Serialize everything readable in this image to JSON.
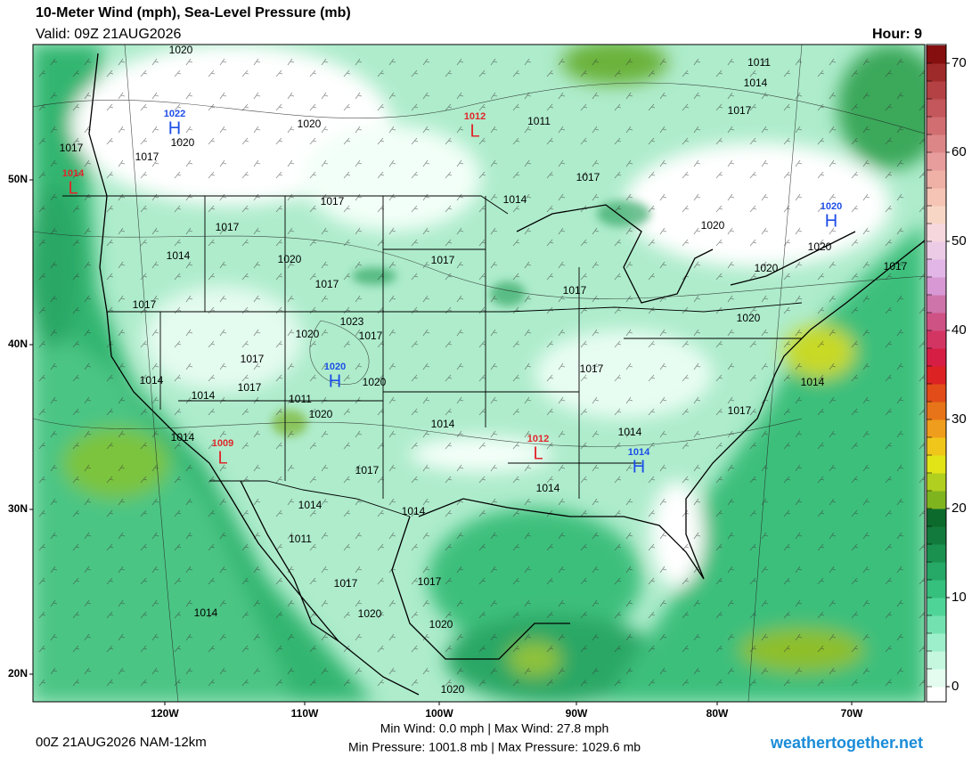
{
  "header": {
    "title": "10-Meter Wind (mph), Sea-Level Pressure (mb)",
    "valid": "Valid: 09Z 21AUG2026",
    "hour": "Hour: 9"
  },
  "map": {
    "lat_labels": [
      "50N",
      "40N",
      "30N",
      "20N"
    ],
    "lon_labels": [
      "120W",
      "110W",
      "100W",
      "90W",
      "80W",
      "70W"
    ],
    "isobar_labels": [
      1020,
      1020,
      1017,
      1020,
      1011,
      1017,
      1011,
      1014,
      1017,
      1014,
      1017,
      1017,
      1014,
      1020,
      1017,
      1017,
      1017,
      1020,
      1020,
      1020,
      1017,
      1017,
      1023,
      1020,
      1017,
      1020,
      1017,
      1017,
      1014,
      1014,
      1017,
      1020,
      1014,
      1017,
      1011,
      1020,
      1014,
      1014,
      1014,
      1017,
      1014,
      1014,
      1014,
      1011,
      1017,
      1017,
      1020,
      1020,
      1014,
      1020,
      1017
    ],
    "centers": [
      {
        "type": "H",
        "pressure": 1022
      },
      {
        "type": "L",
        "pressure": 1012
      },
      {
        "type": "L",
        "pressure": 1014
      },
      {
        "type": "H",
        "pressure": 1020
      },
      {
        "type": "H",
        "pressure": 1020
      },
      {
        "type": "L",
        "pressure": 1009
      },
      {
        "type": "L",
        "pressure": 1012
      },
      {
        "type": "H",
        "pressure": 1014
      }
    ]
  },
  "colorbar": {
    "range": [
      0,
      72
    ],
    "ticks": [
      0,
      10,
      20,
      30,
      40,
      50,
      60,
      70
    ],
    "colors": [
      "#e4fcef",
      "#c4f7de",
      "#9cefca",
      "#74e2b0",
      "#4fd497",
      "#36c07d",
      "#26a866",
      "#1b9150",
      "#127a3c",
      "#0c6a2c",
      "#80b41f",
      "#b0cf1e",
      "#e2e418",
      "#f0c61b",
      "#ef9d1c",
      "#e77418",
      "#e24c18",
      "#dc2222",
      "#d61e44",
      "#d33563",
      "#cf5284",
      "#cf74aa",
      "#d898d4",
      "#e2b6e6",
      "#eccbe7",
      "#f6d7de",
      "#f8d6c6",
      "#f5c4b4",
      "#efb1a6",
      "#e79d9c",
      "#dc8688",
      "#d06e72",
      "#c3575b",
      "#b44244",
      "#9f2a2a",
      "#850e0e"
    ]
  },
  "footer": {
    "run": "00Z 21AUG2026 NAM-12km",
    "wind": "Min Wind:  0.0 mph | Max Wind: 27.8 mph",
    "pressure": "Min Pressure: 1001.8 mb | Max Pressure: 1029.6 mb",
    "site": "weathertogether.net"
  }
}
